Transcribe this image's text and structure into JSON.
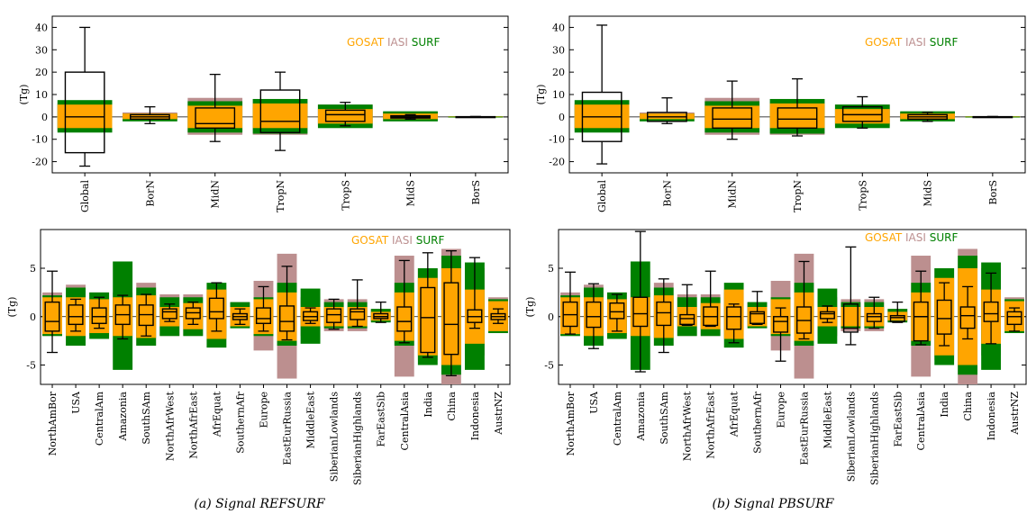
{
  "colors": {
    "GOSAT": "#FFA500",
    "IASI": "#BC8F8F",
    "SURF": "#008000",
    "box": "#000000"
  },
  "legend": {
    "gosat": "GOSAT",
    "iasi": "IASI",
    "surf": "SURF"
  },
  "captions": {
    "left": "(a) Signal REFSURF",
    "right": "(b) Signal PBSURF"
  },
  "chart_data": [
    {
      "type": "box",
      "panel": "a-top",
      "ylabel": "(Tg)",
      "ylim": [
        -25,
        45
      ],
      "yticks": [
        -20,
        -10,
        0,
        10,
        20,
        30,
        40
      ],
      "categories": [
        "Global",
        "BorN",
        "MidN",
        "TropN",
        "TropS",
        "MidS",
        "BorS"
      ],
      "bars": {
        "iasi": [
          [
            -6,
            6
          ],
          [
            -1,
            2
          ],
          [
            -8,
            8.5
          ],
          [
            -8,
            8
          ],
          [
            -4,
            5.5
          ],
          [
            -1,
            2
          ],
          [
            -0.2,
            0.2
          ]
        ],
        "surf": [
          [
            -7,
            7.5
          ],
          [
            -2,
            1.5
          ],
          [
            -7,
            7
          ],
          [
            -7.5,
            8
          ],
          [
            -5,
            5.5
          ],
          [
            -2,
            2.5
          ],
          [
            -0.3,
            0.3
          ]
        ],
        "gosat": [
          [
            -5,
            5.5
          ],
          [
            -1,
            1.5
          ],
          [
            -5,
            5
          ],
          [
            -5,
            6
          ],
          [
            -3,
            3.5
          ],
          [
            -1,
            1.5
          ],
          [
            -0.1,
            0.1
          ]
        ]
      },
      "boxes": [
        {
          "q1": -16,
          "median": 0,
          "q3": 20,
          "min": -22,
          "max": 40
        },
        {
          "q1": -1,
          "median": 0,
          "q3": 1,
          "min": -3,
          "max": 4.5
        },
        {
          "q1": -5,
          "median": -3,
          "q3": 4,
          "min": -11,
          "max": 19
        },
        {
          "q1": -7,
          "median": -2,
          "q3": 12,
          "min": -15,
          "max": 20
        },
        {
          "q1": -2,
          "median": 1,
          "q3": 3,
          "min": -4,
          "max": 6.5
        },
        {
          "q1": -0.5,
          "median": 0,
          "q3": 0.5,
          "min": -1,
          "max": 1
        },
        {
          "q1": -0.1,
          "median": 0,
          "q3": 0.1,
          "min": -0.2,
          "max": 0.2
        }
      ]
    },
    {
      "type": "box",
      "panel": "b-top",
      "ylabel": "(Tg)",
      "ylim": [
        -25,
        45
      ],
      "yticks": [
        -20,
        -10,
        0,
        10,
        20,
        30,
        40
      ],
      "categories": [
        "Global",
        "BorN",
        "MidN",
        "TropN",
        "TropS",
        "MidS",
        "BorS"
      ],
      "bars": {
        "iasi": [
          [
            -6,
            6
          ],
          [
            -1,
            2
          ],
          [
            -8,
            8.5
          ],
          [
            -8,
            8
          ],
          [
            -4,
            5.5
          ],
          [
            -1,
            2
          ],
          [
            -0.2,
            0.2
          ]
        ],
        "surf": [
          [
            -7,
            7.5
          ],
          [
            -2,
            1.5
          ],
          [
            -7,
            7
          ],
          [
            -7.5,
            8
          ],
          [
            -5,
            5.5
          ],
          [
            -2,
            2.5
          ],
          [
            -0.3,
            0.3
          ]
        ],
        "gosat": [
          [
            -5,
            5.5
          ],
          [
            -1,
            1.5
          ],
          [
            -5,
            5
          ],
          [
            -5,
            6
          ],
          [
            -3,
            3.5
          ],
          [
            -1,
            1.5
          ],
          [
            -0.1,
            0.1
          ]
        ]
      },
      "boxes": [
        {
          "q1": -11,
          "median": 0,
          "q3": 11,
          "min": -21,
          "max": 41
        },
        {
          "q1": -2,
          "median": 0,
          "q3": 2,
          "min": -3,
          "max": 8.5
        },
        {
          "q1": -5,
          "median": -1,
          "q3": 4,
          "min": -10,
          "max": 16
        },
        {
          "q1": -5,
          "median": -1,
          "q3": 4,
          "min": -8.5,
          "max": 17
        },
        {
          "q1": -2,
          "median": 1,
          "q3": 4.5,
          "min": -5,
          "max": 9
        },
        {
          "q1": -1,
          "median": 0,
          "q3": 1,
          "min": -2,
          "max": 2
        },
        {
          "q1": -0.1,
          "median": 0,
          "q3": 0.1,
          "min": -0.2,
          "max": 0.2
        }
      ]
    },
    {
      "type": "box",
      "panel": "a-bottom",
      "ylabel": "(Tg)",
      "ylim": [
        -7,
        9
      ],
      "yticks": [
        -5,
        0,
        5
      ],
      "categories": [
        "NorthAmBor",
        "USA",
        "CentralAm",
        "Amazonia",
        "SouthSAm",
        "NorthAfrWest",
        "NorthAfrEast",
        "AfrEquat",
        "SouthernAfr",
        "Europe",
        "EastEurRussia",
        "MiddleEast",
        "SiberianLowlands",
        "SiberianHighlands",
        "FarEastSib",
        "CentralAsia",
        "India",
        "China",
        "Indonesia",
        "AustrNZ"
      ],
      "bars": {
        "iasi": [
          [
            -2,
            2.5
          ],
          [
            -3,
            3.3
          ],
          [
            -2,
            2.5
          ],
          [
            -2,
            2.5
          ],
          [
            -3,
            3.5
          ],
          [
            -2,
            2.3
          ],
          [
            -2,
            2.3
          ],
          [
            -2,
            2.5
          ],
          [
            -1,
            1.5
          ],
          [
            -3.5,
            3.7
          ],
          [
            -6.4,
            6.5
          ],
          [
            -2,
            2
          ],
          [
            -1.5,
            1.8
          ],
          [
            -1.5,
            1.8
          ],
          [
            -0.5,
            0.8
          ],
          [
            -6.2,
            6.3
          ],
          [
            -4.5,
            5
          ],
          [
            -7,
            7
          ],
          [
            -4,
            5
          ],
          [
            -1.5,
            2
          ]
        ],
        "surf": [
          [
            -2,
            2.2
          ],
          [
            -3,
            3
          ],
          [
            -2.3,
            2.5
          ],
          [
            -5.5,
            5.7
          ],
          [
            -3,
            3
          ],
          [
            -2,
            2
          ],
          [
            -2,
            2
          ],
          [
            -3.2,
            3.5
          ],
          [
            -1.2,
            1.5
          ],
          [
            -2,
            2
          ],
          [
            -3,
            3.5
          ],
          [
            -2.8,
            2.9
          ],
          [
            -1.2,
            1.5
          ],
          [
            -1.2,
            1.5
          ],
          [
            -0.6,
            0.8
          ],
          [
            -3,
            3.5
          ],
          [
            -5,
            5
          ],
          [
            -6,
            6.3
          ],
          [
            -5.5,
            5.6
          ],
          [
            -1.7,
            1.8
          ]
        ],
        "gosat": [
          [
            -1.8,
            2
          ],
          [
            -2,
            2
          ],
          [
            -1.7,
            1.8
          ],
          [
            -2,
            2
          ],
          [
            -2.2,
            2.2
          ],
          [
            -1,
            1
          ],
          [
            -1.3,
            1.4
          ],
          [
            -2.3,
            2.8
          ],
          [
            -1,
            1
          ],
          [
            -1.8,
            1.8
          ],
          [
            -2.5,
            2.5
          ],
          [
            -1,
            1
          ],
          [
            -1,
            1
          ],
          [
            -1,
            1
          ],
          [
            -0.4,
            0.5
          ],
          [
            -2.5,
            2.5
          ],
          [
            -4,
            4
          ],
          [
            -5,
            5
          ],
          [
            -2.8,
            2.8
          ],
          [
            -1.5,
            1.6
          ]
        ]
      },
      "boxes": [
        {
          "q1": -1.5,
          "median": -0.5,
          "q3": 1.5,
          "min": -3.7,
          "max": 4.7
        },
        {
          "q1": -0.8,
          "median": 0,
          "q3": 1.2,
          "min": -1.5,
          "max": 1.8
        },
        {
          "q1": -0.7,
          "median": 0,
          "q3": 0.9,
          "min": -1.2,
          "max": 2
        },
        {
          "q1": -0.8,
          "median": 0.2,
          "q3": 1.2,
          "min": -2.3,
          "max": 2.2
        },
        {
          "q1": -0.9,
          "median": 0.2,
          "q3": 1.2,
          "min": -2,
          "max": 2.3
        },
        {
          "q1": -0.2,
          "median": 0.5,
          "q3": 0.8,
          "min": -0.5,
          "max": 1.3
        },
        {
          "q1": -0.2,
          "median": 0.4,
          "q3": 0.9,
          "min": -0.8,
          "max": 1.5
        },
        {
          "q1": -0.2,
          "median": 0.5,
          "q3": 1.9,
          "min": -1.5,
          "max": 3.5
        },
        {
          "q1": -0.3,
          "median": 0,
          "q3": 0.3,
          "min": -0.8,
          "max": 0.8
        },
        {
          "q1": -0.7,
          "median": -0.2,
          "q3": 0.9,
          "min": -1.5,
          "max": 3.1
        },
        {
          "q1": -1.5,
          "median": -0.5,
          "q3": 1.1,
          "min": -2.4,
          "max": 5.2
        },
        {
          "q1": -0.4,
          "median": 0,
          "q3": 0.5,
          "min": -0.7,
          "max": 0.9
        },
        {
          "q1": -0.6,
          "median": 0.2,
          "q3": 0.8,
          "min": -1.3,
          "max": 1.8
        },
        {
          "q1": -0.3,
          "median": 0.5,
          "q3": 0.8,
          "min": -1,
          "max": 3.8
        },
        {
          "q1": -0.2,
          "median": 0,
          "q3": 0.3,
          "min": -0.6,
          "max": 1.5
        },
        {
          "q1": -1.5,
          "median": -0.5,
          "q3": 1,
          "min": -2.7,
          "max": 5.8
        },
        {
          "q1": -3.7,
          "median": -0.1,
          "q3": 3,
          "min": -4.2,
          "max": 6.6
        },
        {
          "q1": -3.9,
          "median": -0.8,
          "q3": 3.5,
          "min": -6.1,
          "max": 6.8
        },
        {
          "q1": -0.6,
          "median": 0,
          "q3": 0.7,
          "min": -1.2,
          "max": 6.1
        },
        {
          "q1": -0.3,
          "median": 0,
          "q3": 0.3,
          "min": -0.7,
          "max": 0.8
        }
      ]
    },
    {
      "type": "box",
      "panel": "b-bottom",
      "ylabel": "(Tg)",
      "ylim": [
        -7,
        9
      ],
      "yticks": [
        -5,
        0,
        5
      ],
      "categories": [
        "NorthAmBor",
        "USA",
        "CentralAm",
        "Amazonia",
        "SouthSAm",
        "NorthAfrWest",
        "NorthAfrEast",
        "AfrEquat",
        "SouthernAfr",
        "Europe",
        "EastEurRussia",
        "MiddleEast",
        "SiberianLowlands",
        "SiberianHighlands",
        "FarEastSib",
        "CentralAsia",
        "India",
        "China",
        "Indonesia",
        "AustrNZ"
      ],
      "bars": {
        "iasi": [
          [
            -2,
            2.5
          ],
          [
            -3,
            3.3
          ],
          [
            -2,
            2.5
          ],
          [
            -2,
            2.5
          ],
          [
            -3,
            3.5
          ],
          [
            -2,
            2.3
          ],
          [
            -2,
            2.3
          ],
          [
            -2,
            2.5
          ],
          [
            -1,
            1.5
          ],
          [
            -3.5,
            3.7
          ],
          [
            -6.4,
            6.5
          ],
          [
            -2,
            2
          ],
          [
            -1.5,
            1.8
          ],
          [
            -1.5,
            1.8
          ],
          [
            -0.5,
            0.8
          ],
          [
            -6.2,
            6.3
          ],
          [
            -4.5,
            5
          ],
          [
            -7,
            7
          ],
          [
            -4,
            5
          ],
          [
            -1.5,
            2
          ]
        ],
        "surf": [
          [
            -2,
            2.2
          ],
          [
            -3,
            3
          ],
          [
            -2.3,
            2.5
          ],
          [
            -5.5,
            5.7
          ],
          [
            -3,
            3
          ],
          [
            -2,
            2
          ],
          [
            -2,
            2
          ],
          [
            -3.2,
            3.5
          ],
          [
            -1.2,
            1.5
          ],
          [
            -2,
            2
          ],
          [
            -3,
            3.5
          ],
          [
            -2.8,
            2.9
          ],
          [
            -1.2,
            1.5
          ],
          [
            -1.2,
            1.5
          ],
          [
            -0.6,
            0.8
          ],
          [
            -3,
            3.5
          ],
          [
            -5,
            5
          ],
          [
            -6,
            6.3
          ],
          [
            -5.5,
            5.6
          ],
          [
            -1.7,
            1.8
          ]
        ],
        "gosat": [
          [
            -1.8,
            2
          ],
          [
            -2,
            2
          ],
          [
            -1.7,
            1.8
          ],
          [
            -2,
            2
          ],
          [
            -2.2,
            2.2
          ],
          [
            -1,
            1
          ],
          [
            -1.3,
            1.4
          ],
          [
            -2.3,
            2.8
          ],
          [
            -1,
            1
          ],
          [
            -1.8,
            1.8
          ],
          [
            -2.5,
            2.5
          ],
          [
            -1,
            1
          ],
          [
            -1,
            1
          ],
          [
            -1,
            1
          ],
          [
            -0.4,
            0.5
          ],
          [
            -2.5,
            2.5
          ],
          [
            -4,
            4
          ],
          [
            -5,
            5
          ],
          [
            -2.8,
            2.8
          ],
          [
            -1.5,
            1.6
          ]
        ]
      },
      "boxes": [
        {
          "q1": -1,
          "median": 0.2,
          "q3": 1.5,
          "min": -1.8,
          "max": 4.6
        },
        {
          "q1": -1.1,
          "median": 0,
          "q3": 1.5,
          "min": -3.3,
          "max": 3.4
        },
        {
          "q1": -0.2,
          "median": 0.5,
          "q3": 1.4,
          "min": -1.5,
          "max": 2.3
        },
        {
          "q1": -1,
          "median": 0.3,
          "q3": 2,
          "min": -5.7,
          "max": 8.8
        },
        {
          "q1": -0.9,
          "median": 0.4,
          "q3": 1.5,
          "min": -3.7,
          "max": 3.9
        },
        {
          "q1": -0.8,
          "median": -0.2,
          "q3": 0.2,
          "min": -0.9,
          "max": 3.3
        },
        {
          "q1": -0.9,
          "median": 0,
          "q3": 1,
          "min": -1,
          "max": 4.7
        },
        {
          "q1": -1.3,
          "median": 0,
          "q3": 1,
          "min": -2.7,
          "max": 1.3
        },
        {
          "q1": -0.7,
          "median": 0.3,
          "q3": 0.5,
          "min": -0.8,
          "max": 2.6
        },
        {
          "q1": -1.6,
          "median": -0.5,
          "q3": 0,
          "min": -4.6,
          "max": 0.9
        },
        {
          "q1": -1.7,
          "median": -0.4,
          "q3": 1,
          "min": -2.3,
          "max": 5.7
        },
        {
          "q1": -0.2,
          "median": 0.3,
          "q3": 0.5,
          "min": -0.6,
          "max": 1.1
        },
        {
          "q1": -1.6,
          "median": -1.2,
          "q3": 1.3,
          "min": -2.9,
          "max": 7.2
        },
        {
          "q1": -0.5,
          "median": 0,
          "q3": 0.3,
          "min": -1.2,
          "max": 2
        },
        {
          "q1": -0.5,
          "median": -0.1,
          "q3": 0.1,
          "min": -0.6,
          "max": 1.5
        },
        {
          "q1": -2.5,
          "median": 0,
          "q3": 1.5,
          "min": -2.9,
          "max": 4.7
        },
        {
          "q1": -1.8,
          "median": -0.2,
          "q3": 1.7,
          "min": -3,
          "max": 3.5
        },
        {
          "q1": -1.2,
          "median": 0.1,
          "q3": 1,
          "min": -2.3,
          "max": 3.1
        },
        {
          "q1": -0.5,
          "median": 0.3,
          "q3": 1.5,
          "min": -2.8,
          "max": 4.5
        },
        {
          "q1": -0.8,
          "median": 0,
          "q3": 0.5,
          "min": -1.5,
          "max": 0.9
        }
      ]
    }
  ]
}
